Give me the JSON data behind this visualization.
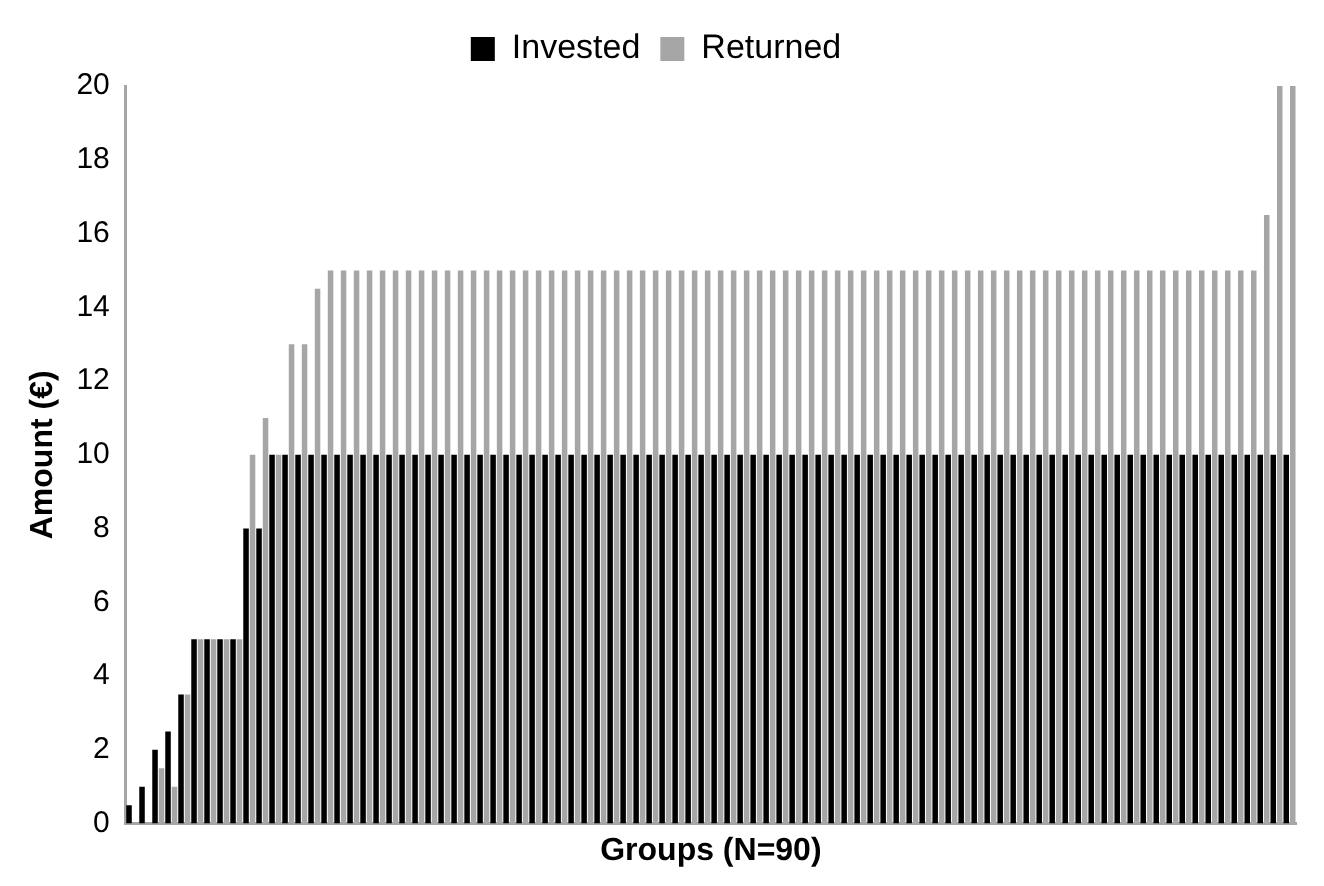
{
  "chart_data": {
    "type": "bar",
    "xlabel": "Groups (N=90)",
    "ylabel": "Amount (€)",
    "categories": [
      null,
      null,
      null,
      null,
      null,
      null,
      null,
      null,
      null,
      null,
      null,
      null,
      null,
      null,
      null,
      null,
      null,
      null,
      null,
      null,
      null,
      null,
      null,
      null,
      null,
      null,
      null,
      null,
      null,
      null,
      null,
      null,
      null,
      null,
      null,
      null,
      null,
      null,
      null,
      null,
      null,
      null,
      null,
      null,
      null,
      null,
      null,
      null,
      null,
      null,
      null,
      null,
      null,
      null,
      null,
      null,
      null,
      null,
      null,
      null,
      null,
      null,
      null,
      null,
      null,
      null,
      null,
      null,
      null,
      null,
      null,
      null,
      null,
      null,
      null,
      null,
      null,
      null,
      null,
      null,
      null,
      null,
      null,
      null,
      null,
      null,
      null,
      null,
      null,
      null
    ],
    "series": [
      {
        "name": "Invested",
        "color": "#000000",
        "values": [
          0.5,
          1,
          2,
          2.5,
          3.5,
          5,
          5,
          5,
          5,
          8,
          8,
          10,
          10,
          10,
          10,
          10,
          10,
          10,
          10,
          10,
          10,
          10,
          10,
          10,
          10,
          10,
          10,
          10,
          10,
          10,
          10,
          10,
          10,
          10,
          10,
          10,
          10,
          10,
          10,
          10,
          10,
          10,
          10,
          10,
          10,
          10,
          10,
          10,
          10,
          10,
          10,
          10,
          10,
          10,
          10,
          10,
          10,
          10,
          10,
          10,
          10,
          10,
          10,
          10,
          10,
          10,
          10,
          10,
          10,
          10,
          10,
          10,
          10,
          10,
          10,
          10,
          10,
          10,
          10,
          10,
          10,
          10,
          10,
          10,
          10,
          10,
          10,
          10,
          10,
          10
        ]
      },
      {
        "name": "Returned",
        "color": "#a6a6a6",
        "values": [
          0,
          0,
          1.5,
          1,
          3.5,
          5,
          5,
          5,
          5,
          10,
          11,
          10,
          13,
          13,
          14.5,
          15,
          15,
          15,
          15,
          15,
          15,
          15,
          15,
          15,
          15,
          15,
          15,
          15,
          15,
          15,
          15,
          15,
          15,
          15,
          15,
          15,
          15,
          15,
          15,
          15,
          15,
          15,
          15,
          15,
          15,
          15,
          15,
          15,
          15,
          15,
          15,
          15,
          15,
          15,
          15,
          15,
          15,
          15,
          15,
          15,
          15,
          15,
          15,
          15,
          15,
          15,
          15,
          15,
          15,
          15,
          15,
          15,
          15,
          15,
          15,
          15,
          15,
          15,
          15,
          15,
          15,
          15,
          15,
          15,
          15,
          15,
          15,
          16.5,
          20,
          20
        ]
      }
    ],
    "ylim": [
      0,
      20
    ],
    "yticks": [
      0,
      2,
      4,
      6,
      8,
      10,
      12,
      14,
      16,
      18,
      20
    ],
    "grid": false,
    "legend": "top",
    "tick_labels": "y"
  }
}
